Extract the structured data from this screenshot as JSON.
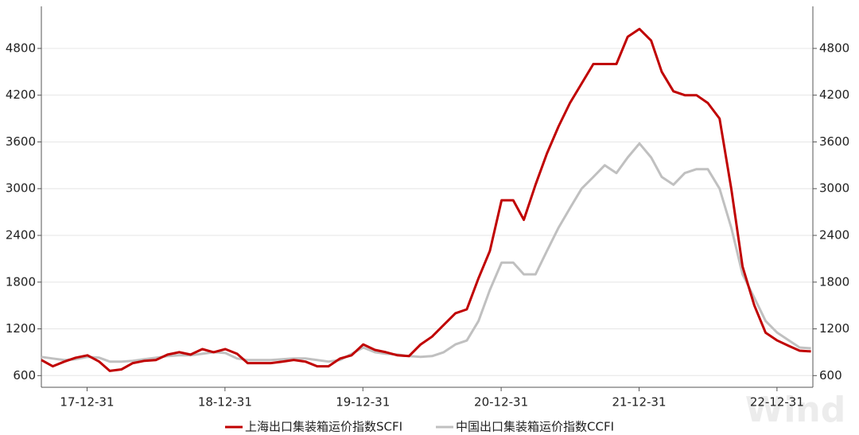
{
  "chart_data": {
    "type": "line",
    "watermark": "Wind",
    "x": [
      "17-09-01",
      "17-10-01",
      "17-11-01",
      "17-12-01",
      "18-01-01",
      "18-02-01",
      "18-03-01",
      "18-04-01",
      "18-05-01",
      "18-06-01",
      "18-07-01",
      "18-08-01",
      "18-09-01",
      "18-10-01",
      "18-11-01",
      "18-12-01",
      "19-01-01",
      "19-02-01",
      "19-03-01",
      "19-04-01",
      "19-05-01",
      "19-06-01",
      "19-07-01",
      "19-08-01",
      "19-09-01",
      "19-10-01",
      "19-11-01",
      "19-12-01",
      "20-01-01",
      "20-02-01",
      "20-03-01",
      "20-04-01",
      "20-05-01",
      "20-06-01",
      "20-07-01",
      "20-08-01",
      "20-09-01",
      "20-10-01",
      "20-11-01",
      "20-12-01",
      "21-01-01",
      "21-02-01",
      "21-03-01",
      "21-04-01",
      "21-05-01",
      "21-06-01",
      "21-07-01",
      "21-08-01",
      "21-09-01",
      "21-10-01",
      "21-11-01",
      "21-12-01",
      "22-01-01",
      "22-02-01",
      "22-03-01",
      "22-04-01",
      "22-05-01",
      "22-06-01",
      "22-07-01",
      "22-08-01",
      "22-09-01",
      "22-10-01",
      "22-11-01",
      "22-12-01",
      "23-01-01",
      "23-02-01",
      "23-03-01",
      "23-03-31"
    ],
    "series": [
      {
        "name": "上海出口集装箱运价指数SCFI",
        "color": "#c00000",
        "values": [
          800,
          720,
          780,
          830,
          860,
          780,
          660,
          680,
          760,
          790,
          800,
          870,
          900,
          870,
          940,
          900,
          940,
          880,
          760,
          760,
          760,
          780,
          800,
          780,
          720,
          720,
          820,
          860,
          1000,
          930,
          900,
          860,
          850,
          1000,
          1100,
          1250,
          1400,
          1450,
          1850,
          2200,
          2850,
          2850,
          2600,
          3050,
          3450,
          3800,
          4100,
          4350,
          4600,
          4600,
          4600,
          4950,
          5050,
          4900,
          4500,
          4250,
          4200,
          4200,
          4100,
          3900,
          3000,
          2000,
          1500,
          1150,
          1050,
          980,
          920,
          910
        ]
      },
      {
        "name": "中国出口集装箱运价指数CCFI",
        "color": "#c0c0c0",
        "values": [
          840,
          820,
          800,
          810,
          840,
          830,
          780,
          780,
          790,
          810,
          830,
          850,
          860,
          860,
          880,
          900,
          890,
          820,
          800,
          800,
          800,
          810,
          820,
          820,
          800,
          780,
          800,
          880,
          960,
          900,
          880,
          870,
          850,
          840,
          850,
          900,
          1000,
          1050,
          1300,
          1700,
          2050,
          2050,
          1900,
          1900,
          2200,
          2500,
          2750,
          3000,
          3150,
          3300,
          3200,
          3400,
          3580,
          3400,
          3150,
          3050,
          3200,
          3250,
          3250,
          3000,
          2500,
          1900,
          1600,
          1300,
          1150,
          1050,
          960,
          950
        ]
      }
    ],
    "xlim": [
      "17-09-01",
      "23-04-05"
    ],
    "xticks": [
      "17-12-31",
      "18-12-31",
      "19-12-31",
      "20-12-31",
      "21-12-31",
      "22-12-31"
    ],
    "ylim": [
      450,
      5340
    ],
    "yticks": [
      600,
      1200,
      1800,
      2400,
      3000,
      3600,
      4200,
      4800
    ],
    "y2lim": [
      450,
      5340
    ],
    "y2ticks": [
      600,
      1200,
      1800,
      2400,
      3000,
      3600,
      4200,
      4800
    ],
    "grid": true,
    "legend": "bottom"
  }
}
